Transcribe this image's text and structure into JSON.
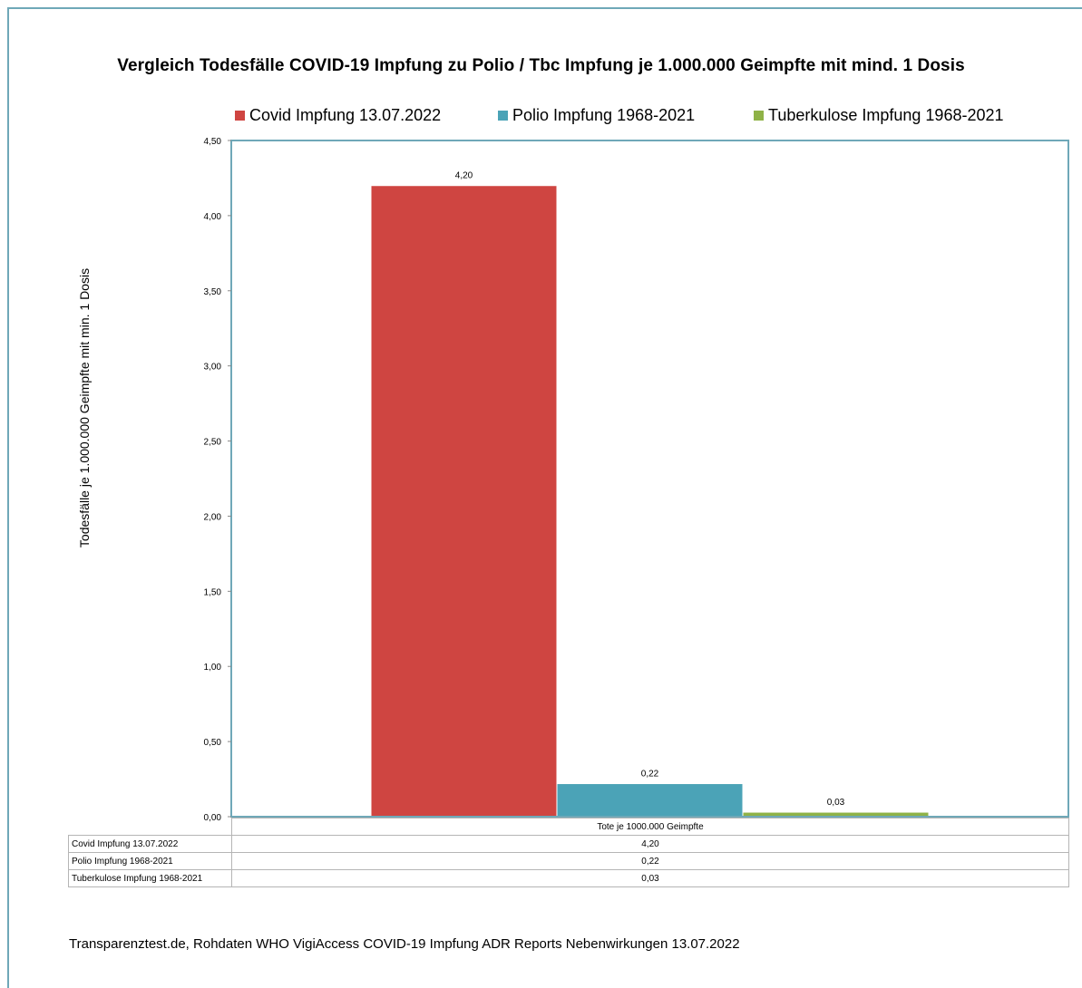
{
  "chart_data": {
    "type": "bar",
    "title": "Vergleich Todesfälle COVID-19 Impfung zu Polio / Tbc Impfung je 1.000.000 Geimpfte mit mind. 1 Dosis",
    "ylabel": "Todesfälle je 1.000.000 Geimpfte mit min. 1 Dosis",
    "xlabel": "Tote je 1000.000 Geimpfte",
    "ylim": [
      0,
      4.5
    ],
    "yticks": [
      "0,00",
      "0,50",
      "1,00",
      "1,50",
      "2,00",
      "2,50",
      "3,00",
      "3,50",
      "4,00",
      "4,50"
    ],
    "categories": [
      "Tote je 1000.000 Geimpfte"
    ],
    "legend_position": "top",
    "grid": false,
    "series": [
      {
        "name": "Covid Impfung 13.07.2022",
        "values": [
          4.2
        ],
        "label": "4,20",
        "color": "#cf4541"
      },
      {
        "name": "Polio Impfung 1968-2021",
        "values": [
          0.22
        ],
        "label": "0,22",
        "color": "#4ba3b7"
      },
      {
        "name": "Tuberkulose Impfung 1968-2021",
        "values": [
          0.03
        ],
        "label": "0,03",
        "color": "#8fb247"
      }
    ]
  },
  "table": {
    "header": "Tote je 1000.000 Geimpfte",
    "rows": [
      {
        "label": "Covid Impfung 13.07.2022",
        "value": "4,20"
      },
      {
        "label": "Polio Impfung 1968-2021",
        "value": "0,22"
      },
      {
        "label": "Tuberkulose Impfung 1968-2021",
        "value": "0,03"
      }
    ]
  },
  "source": "Transparenztest.de, Rohdaten WHO VigiAccess COVID-19 Impfung ADR Reports Nebenwirkungen 13.07.2022"
}
